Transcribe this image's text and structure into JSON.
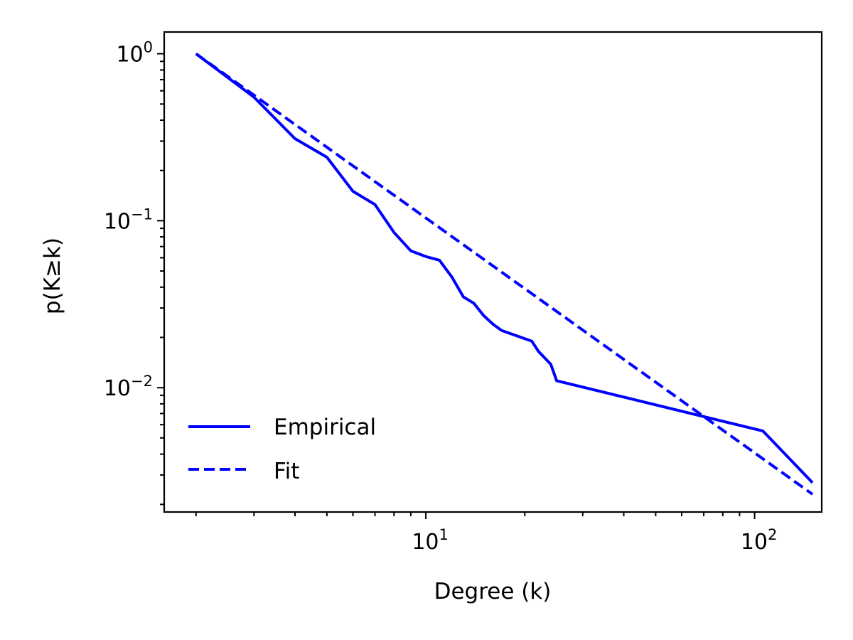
{
  "chart_data": {
    "type": "line",
    "title": "",
    "xlabel": "Degree (k)",
    "ylabel": "p(K≥k)",
    "xscale": "log",
    "yscale": "log",
    "xlim": [
      1.6,
      160
    ],
    "ylim": [
      0.0018,
      1.35
    ],
    "grid": false,
    "legend_placement": "lower-left",
    "x_ticks": [
      {
        "value": 10,
        "base": "10",
        "exp": "1"
      },
      {
        "value": 100,
        "base": "10",
        "exp": "2"
      }
    ],
    "y_ticks": [
      {
        "value": 1,
        "base": "10",
        "exp": "0"
      },
      {
        "value": 0.1,
        "base": "10",
        "exp": "−1"
      },
      {
        "value": 0.01,
        "base": "10",
        "exp": "−2"
      }
    ],
    "series": [
      {
        "name": "Empirical",
        "style": "solid",
        "color": "#0000ff",
        "x": [
          2,
          3,
          4,
          5,
          6,
          7,
          8,
          9,
          10,
          11,
          12,
          13,
          14,
          15,
          16,
          17,
          21,
          22,
          24,
          25,
          106,
          150
        ],
        "y": [
          1.0,
          0.55,
          0.31,
          0.24,
          0.15,
          0.125,
          0.085,
          0.066,
          0.061,
          0.058,
          0.046,
          0.035,
          0.032,
          0.027,
          0.024,
          0.022,
          0.019,
          0.0165,
          0.0138,
          0.011,
          0.0055,
          0.0027
        ]
      },
      {
        "name": "Fit",
        "style": "dashed",
        "color": "#0000ff",
        "x": [
          2,
          150
        ],
        "y": [
          1.0,
          0.0023
        ]
      }
    ]
  }
}
